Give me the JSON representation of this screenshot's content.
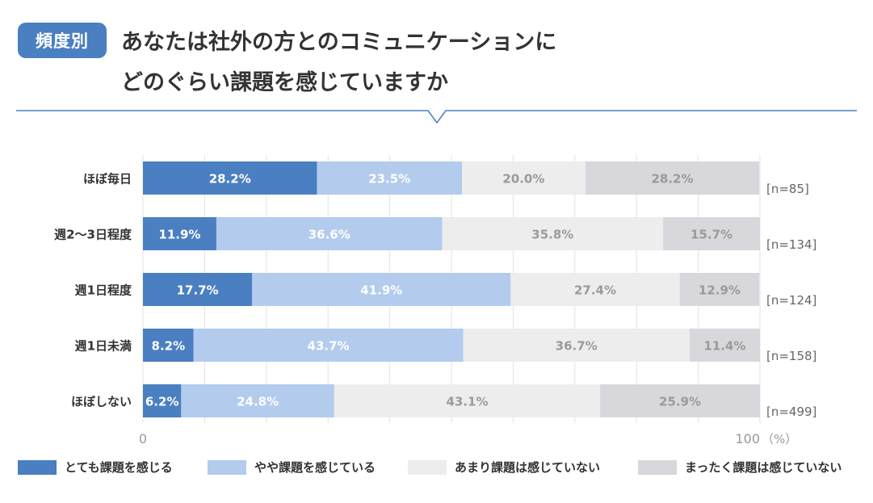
{
  "header": {
    "badge": "頻度別",
    "title_line1": "あなたは社外の方とのコミュニケーションに",
    "title_line2": "どのぐらい課題を感じていますか"
  },
  "chart_data": {
    "type": "bar",
    "orientation": "horizontal-stacked-100",
    "categories": [
      "ほぼ毎日",
      "週2〜3日程度",
      "週1日程度",
      "週1日未満",
      "ほぼしない"
    ],
    "sample_sizes": [
      "[n=85]",
      "[n=134]",
      "[n=124]",
      "[n=158]",
      "[n=499]"
    ],
    "series": [
      {
        "name": "とても課題を感じる",
        "color": "#4a7fc1",
        "label_color": "#ffffff",
        "values": [
          28.2,
          11.9,
          17.7,
          8.2,
          6.2
        ]
      },
      {
        "name": "やや課題を感じている",
        "color": "#b3cbed",
        "label_color": "#ffffff",
        "values": [
          23.5,
          36.6,
          41.9,
          43.7,
          24.8
        ]
      },
      {
        "name": "あまり課題は感じていない",
        "color": "#ededed",
        "label_color": "#9a9a9a",
        "values": [
          20.0,
          35.8,
          27.4,
          36.7,
          43.1
        ]
      },
      {
        "name": "まったく課題は感じていない",
        "color": "#d8d8dc",
        "label_color": "#9a9a9a",
        "values": [
          28.2,
          15.7,
          12.9,
          11.4,
          25.9
        ]
      }
    ],
    "xlim": [
      0,
      100
    ],
    "x_tick_min": "0",
    "x_tick_max": "100",
    "x_unit": "（%）",
    "grid": true
  }
}
